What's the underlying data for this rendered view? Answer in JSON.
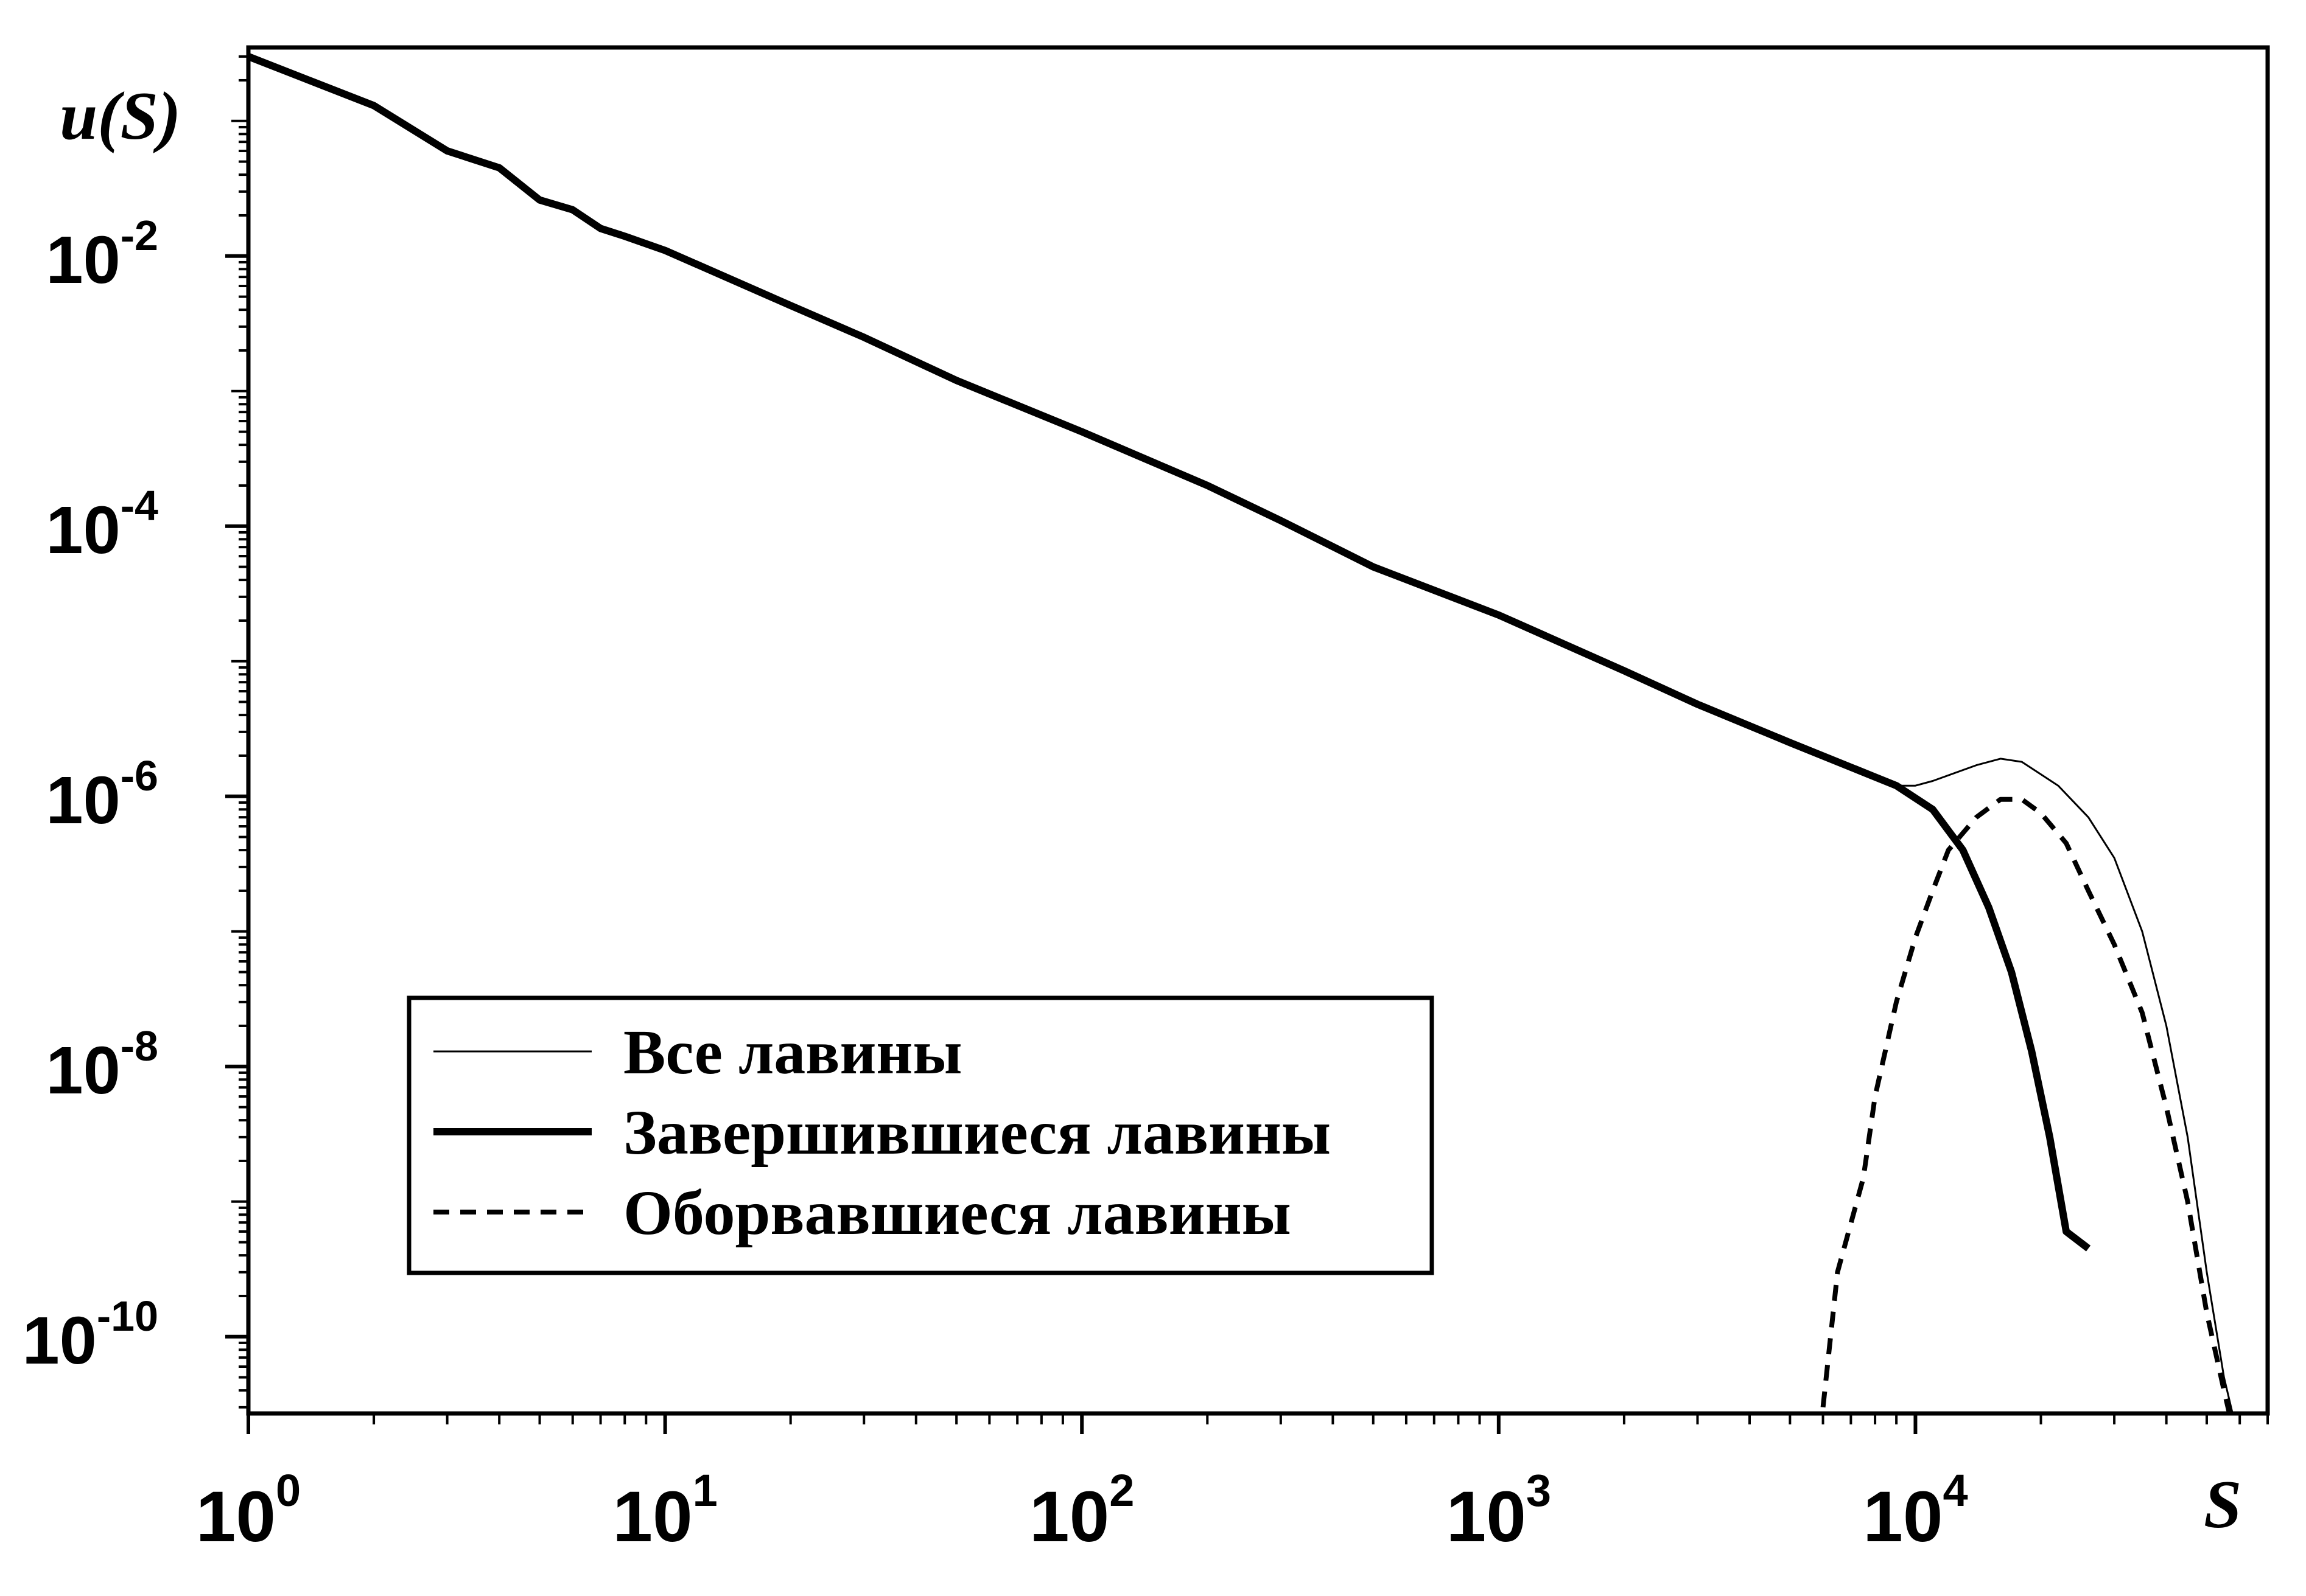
{
  "chart_data": {
    "type": "line",
    "xlabel": "S",
    "ylabel": "u(S)",
    "x_scale": "log",
    "y_scale": "log",
    "xlim": [
      1,
      70000
    ],
    "ylim": [
      2.7e-11,
      0.35
    ],
    "grid": false,
    "legend_position": "bottom-left",
    "x_ticks": [
      {
        "base": "10",
        "exp": "0"
      },
      {
        "base": "10",
        "exp": "1"
      },
      {
        "base": "10",
        "exp": "2"
      },
      {
        "base": "10",
        "exp": "3"
      },
      {
        "base": "10",
        "exp": "4"
      }
    ],
    "y_ticks": [
      {
        "base": "10",
        "exp": "-2"
      },
      {
        "base": "10",
        "exp": "-4"
      },
      {
        "base": "10",
        "exp": "-6"
      },
      {
        "base": "10",
        "exp": "-8"
      },
      {
        "base": "10",
        "exp": "-10"
      }
    ],
    "series": [
      {
        "name": "Все лавины",
        "style": "thin",
        "color": "#000000",
        "points": [
          [
            1,
            0.3
          ],
          [
            2,
            0.13
          ],
          [
            3,
            0.06
          ],
          [
            4,
            0.045
          ],
          [
            5,
            0.026
          ],
          [
            6,
            0.022
          ],
          [
            7,
            0.016
          ],
          [
            8,
            0.014
          ],
          [
            10,
            0.011
          ],
          [
            20,
            0.0043
          ],
          [
            30,
            0.0025
          ],
          [
            50,
            0.0012
          ],
          [
            100,
            0.0005
          ],
          [
            200,
            0.0002
          ],
          [
            300,
            0.00011
          ],
          [
            500,
            5e-05
          ],
          [
            1000,
            2.2e-05
          ],
          [
            2000,
            8.5e-06
          ],
          [
            3000,
            4.8e-06
          ],
          [
            5000,
            2.5e-06
          ],
          [
            9000,
            1.2e-06
          ],
          [
            10000,
            1.2e-06
          ],
          [
            11000,
            1.3e-06
          ],
          [
            14000,
            1.7e-06
          ],
          [
            16000,
            1.9e-06
          ],
          [
            18000,
            1.8e-06
          ],
          [
            22000,
            1.2e-06
          ],
          [
            26000,
            7e-07
          ],
          [
            30000,
            3.5e-07
          ],
          [
            35000,
            1e-07
          ],
          [
            40000,
            2e-08
          ],
          [
            45000,
            3e-09
          ],
          [
            50000,
            3e-10
          ],
          [
            55000,
            5e-11
          ],
          [
            58000,
            2.5e-11
          ]
        ]
      },
      {
        "name": "Завершившиеся лавины",
        "style": "thick",
        "color": "#000000",
        "points": [
          [
            1,
            0.3
          ],
          [
            2,
            0.13
          ],
          [
            3,
            0.06
          ],
          [
            4,
            0.045
          ],
          [
            5,
            0.026
          ],
          [
            6,
            0.022
          ],
          [
            7,
            0.016
          ],
          [
            8,
            0.014
          ],
          [
            10,
            0.011
          ],
          [
            20,
            0.0043
          ],
          [
            30,
            0.0025
          ],
          [
            50,
            0.0012
          ],
          [
            100,
            0.0005
          ],
          [
            200,
            0.0002
          ],
          [
            300,
            0.00011
          ],
          [
            500,
            5e-05
          ],
          [
            1000,
            2.2e-05
          ],
          [
            2000,
            8.5e-06
          ],
          [
            3000,
            4.8e-06
          ],
          [
            5000,
            2.5e-06
          ],
          [
            9000,
            1.2e-06
          ],
          [
            11000,
            8e-07
          ],
          [
            13000,
            4e-07
          ],
          [
            15000,
            1.5e-07
          ],
          [
            17000,
            5e-08
          ],
          [
            19000,
            1.3e-08
          ],
          [
            21000,
            3e-09
          ],
          [
            23000,
            6e-10
          ],
          [
            26000,
            4.5e-10
          ]
        ]
      },
      {
        "name": "Оборвавшиеся лавины",
        "style": "dashed",
        "color": "#000000",
        "points": [
          [
            6000,
            3e-11
          ],
          [
            6500,
            3e-10
          ],
          [
            7500,
            1.5e-09
          ],
          [
            8000,
            6e-09
          ],
          [
            9000,
            3e-08
          ],
          [
            10000,
            9e-08
          ],
          [
            11000,
            2e-07
          ],
          [
            12000,
            4e-07
          ],
          [
            14000,
            7e-07
          ],
          [
            16000,
            9.5e-07
          ],
          [
            18000,
            9.5e-07
          ],
          [
            20000,
            7.5e-07
          ],
          [
            23000,
            4.5e-07
          ],
          [
            26000,
            2e-07
          ],
          [
            30000,
            8e-08
          ],
          [
            35000,
            2.5e-08
          ],
          [
            40000,
            5e-09
          ],
          [
            45000,
            1e-09
          ],
          [
            50000,
            1.5e-10
          ],
          [
            55000,
            4e-11
          ],
          [
            57000,
            2.5e-11
          ]
        ]
      }
    ]
  }
}
